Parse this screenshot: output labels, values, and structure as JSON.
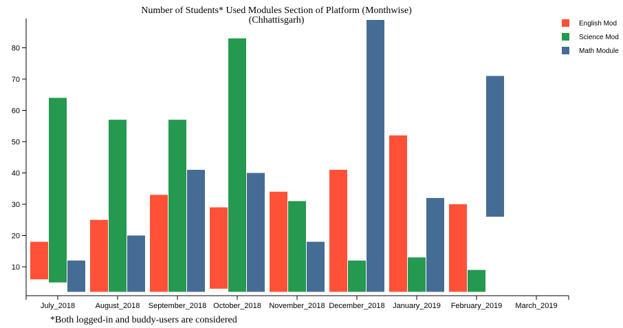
{
  "chart_data": {
    "type": "bar",
    "title": "Number of Students* Used Modules Section of Platform (Monthwise)",
    "subtitle": "(Chhattisgarh)",
    "footnote": "*Both logged-in and buddy-users are considered",
    "categories": [
      "July_2018",
      "August_2018",
      "September_2018",
      "October_2018",
      "November_2018",
      "December_2018",
      "January_2019",
      "February_2019",
      "March_2019"
    ],
    "y_ticks": [
      10,
      20,
      30,
      40,
      50,
      60,
      70,
      80
    ],
    "ylim": [
      0,
      88
    ],
    "legend_position": "top-right",
    "series": [
      {
        "name": "English Mod",
        "color": "#fe5137",
        "values": [
          [
            6,
            18
          ],
          [
            2,
            25
          ],
          [
            2,
            33
          ],
          [
            3,
            29
          ],
          [
            2,
            34
          ],
          [
            2,
            41
          ],
          [
            2,
            52
          ],
          [
            2,
            30
          ],
          null
        ]
      },
      {
        "name": "Science Mod",
        "color": "#24994f",
        "values": [
          [
            5,
            64
          ],
          [
            2,
            57
          ],
          [
            2,
            57
          ],
          [
            2,
            83
          ],
          [
            2,
            31
          ],
          [
            2,
            12
          ],
          [
            2,
            13
          ],
          [
            2,
            9
          ],
          null
        ]
      },
      {
        "name": "Math Module",
        "color": "#456c95",
        "values": [
          [
            2,
            12
          ],
          [
            2,
            20
          ],
          [
            2,
            41
          ],
          [
            2,
            40
          ],
          [
            2,
            18
          ],
          [
            2,
            89
          ],
          [
            2,
            32
          ],
          [
            26,
            71
          ],
          null
        ]
      }
    ]
  }
}
